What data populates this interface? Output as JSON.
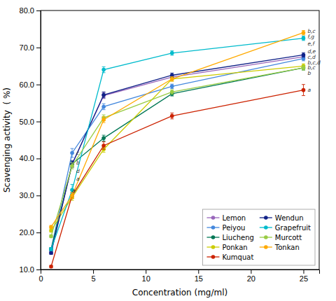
{
  "chart_data": {
    "type": "line",
    "xlabel": "Concentration (mg/ml)",
    "ylabel": "Scavenging activity  ( %)",
    "x": [
      1,
      3,
      6,
      12.5,
      25
    ],
    "series": [
      {
        "name": "Lemon",
        "color": "#9966BB",
        "marker": "o",
        "values": [
          14.5,
          38.5,
          57.0,
          62.0,
          67.5
        ],
        "errors": [
          0.4,
          1.0,
          0.8,
          0.6,
          0.6
        ]
      },
      {
        "name": "Peiyou",
        "color": "#4488DD",
        "marker": "o",
        "values": [
          15.5,
          41.5,
          54.0,
          59.5,
          67.0
        ],
        "errors": [
          0.4,
          1.2,
          0.8,
          0.6,
          0.6
        ]
      },
      {
        "name": "Liucheng",
        "color": "#007755",
        "marker": "o",
        "values": [
          15.5,
          38.5,
          45.5,
          57.5,
          64.5
        ],
        "errors": [
          0.4,
          0.8,
          0.8,
          0.6,
          0.6
        ]
      },
      {
        "name": "Ponkan",
        "color": "#CCCC00",
        "marker": "o",
        "values": [
          20.5,
          29.5,
          42.5,
          61.5,
          65.0
        ],
        "errors": [
          0.4,
          0.8,
          0.8,
          0.6,
          0.6
        ]
      },
      {
        "name": "Kumquat",
        "color": "#CC2200",
        "marker": "o",
        "values": [
          10.8,
          30.0,
          43.5,
          51.5,
          58.5
        ],
        "errors": [
          0.3,
          0.8,
          1.0,
          0.8,
          1.5
        ]
      },
      {
        "name": "Wendun",
        "color": "#112288",
        "marker": "o",
        "values": [
          14.5,
          38.5,
          57.2,
          62.5,
          68.0
        ],
        "errors": [
          0.4,
          0.8,
          0.8,
          0.6,
          0.6
        ]
      },
      {
        "name": "Grapefruit",
        "color": "#00BBCC",
        "marker": "o",
        "values": [
          15.5,
          31.5,
          64.0,
          68.5,
          72.5
        ],
        "errors": [
          0.4,
          1.5,
          0.8,
          0.6,
          0.6
        ]
      },
      {
        "name": "Murcott",
        "color": "#99CC44",
        "marker": "o",
        "values": [
          19.0,
          38.0,
          51.0,
          58.0,
          64.5
        ],
        "errors": [
          0.4,
          0.8,
          0.8,
          0.6,
          0.6
        ]
      },
      {
        "name": "Tonkan",
        "color": "#FFAA00",
        "marker": "o",
        "values": [
          21.5,
          30.0,
          50.5,
          61.5,
          74.0
        ],
        "errors": [
          0.4,
          0.8,
          0.8,
          0.6,
          0.6
        ]
      }
    ],
    "xlim": [
      0,
      26.5
    ],
    "ylim": [
      10.0,
      80.0
    ],
    "xticks": [
      0,
      5,
      10,
      15,
      20,
      25
    ],
    "yticks": [
      {
        "value": 10.0,
        "label": "10.0"
      },
      {
        "value": 20.0,
        "label": "20.0"
      },
      {
        "value": 30.0,
        "label": "30.0"
      },
      {
        "value": 40.0,
        "label": "40.0"
      },
      {
        "value": 50.0,
        "label": "50.0"
      },
      {
        "value": 60.0,
        "label": "60.0"
      },
      {
        "value": 70.0,
        "label": "70.0"
      },
      {
        "value": 80.0,
        "label": "80.0"
      }
    ],
    "annotations": [
      {
        "text": "d",
        "x": 3.4,
        "y": 36.5
      },
      {
        "text": "c",
        "x": 3.4,
        "y": 41.5
      },
      {
        "text": "b",
        "x": 3.4,
        "y": 38.8
      },
      {
        "text": "a",
        "x": 3.4,
        "y": 34.5
      },
      {
        "text": "a",
        "x": 3.0,
        "y": 31.2
      },
      {
        "text": "b,c",
        "x": 25.4,
        "y": 74.5
      },
      {
        "text": "f,g",
        "x": 25.4,
        "y": 73.0
      },
      {
        "text": "e,f",
        "x": 25.4,
        "y": 71.0
      },
      {
        "text": "d,e",
        "x": 25.4,
        "y": 69.0
      },
      {
        "text": "c,d",
        "x": 25.4,
        "y": 67.5
      },
      {
        "text": "b,c,d",
        "x": 25.4,
        "y": 66.0
      },
      {
        "text": "b,c",
        "x": 25.4,
        "y": 64.5
      },
      {
        "text": "b",
        "x": 25.4,
        "y": 63.0
      },
      {
        "text": "a",
        "x": 25.4,
        "y": 58.5
      }
    ],
    "legend": "lower right",
    "grid": false
  }
}
